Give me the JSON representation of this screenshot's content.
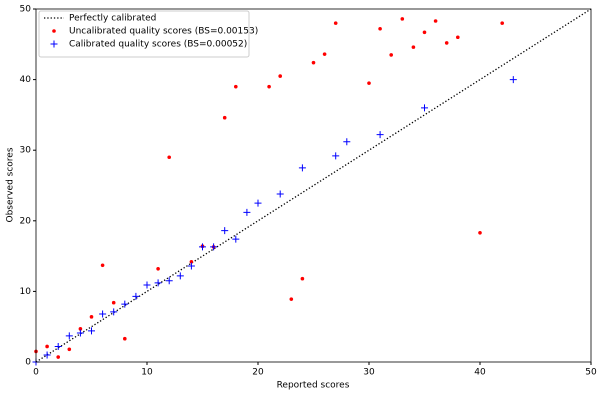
{
  "chart_data": {
    "type": "scatter",
    "xlabel": "Reported scores",
    "ylabel": "Observed scores",
    "xlim": [
      0,
      50
    ],
    "ylim": [
      0,
      50
    ],
    "xticks": [
      0,
      10,
      20,
      30,
      40,
      50
    ],
    "yticks": [
      0,
      10,
      20,
      30,
      40,
      50
    ],
    "legend": "upper left",
    "series": [
      {
        "name": "Perfectly calibrated",
        "color": "#000000",
        "marker": "dotted-line",
        "x": [
          0,
          50
        ],
        "values": [
          0,
          50
        ]
      },
      {
        "name": "Uncalibrated quality scores (BS=0.00153)",
        "color": "#ff0000",
        "marker": "dot",
        "x": [
          0,
          1,
          2,
          3,
          4,
          5,
          6,
          7,
          8,
          11,
          12,
          14,
          15,
          16,
          17,
          18,
          21,
          22,
          23,
          24,
          25,
          26,
          27,
          30,
          31,
          32,
          33,
          34,
          35,
          36,
          37,
          38,
          40,
          42
        ],
        "values": [
          1.5,
          2.2,
          0.7,
          1.8,
          4.7,
          6.4,
          13.7,
          8.4,
          3.3,
          13.2,
          29.0,
          14.2,
          16.4,
          16.3,
          34.6,
          39.0,
          39.0,
          40.5,
          8.9,
          11.8,
          42.4,
          43.6,
          48.0,
          39.5,
          47.2,
          43.5,
          48.6,
          44.6,
          46.7,
          48.3,
          45.2,
          46.0,
          18.3,
          48.0
        ]
      },
      {
        "name": "Calibrated quality scores (BS=0.00052)",
        "color": "#0000ff",
        "marker": "plus",
        "x": [
          0,
          1,
          2,
          3,
          4,
          5,
          6,
          7,
          8,
          9,
          10,
          11,
          12,
          13,
          14,
          15,
          16,
          17,
          18,
          19,
          20,
          22,
          24,
          27,
          28,
          31,
          35,
          43
        ],
        "values": [
          0,
          1.0,
          2.2,
          3.7,
          4.1,
          4.4,
          6.8,
          7.1,
          8.2,
          9.3,
          10.9,
          11.2,
          11.5,
          12.2,
          13.6,
          16.3,
          16.3,
          18.6,
          17.4,
          21.2,
          22.5,
          23.8,
          27.5,
          29.2,
          31.2,
          32.2,
          36.0,
          40.0
        ]
      }
    ]
  }
}
